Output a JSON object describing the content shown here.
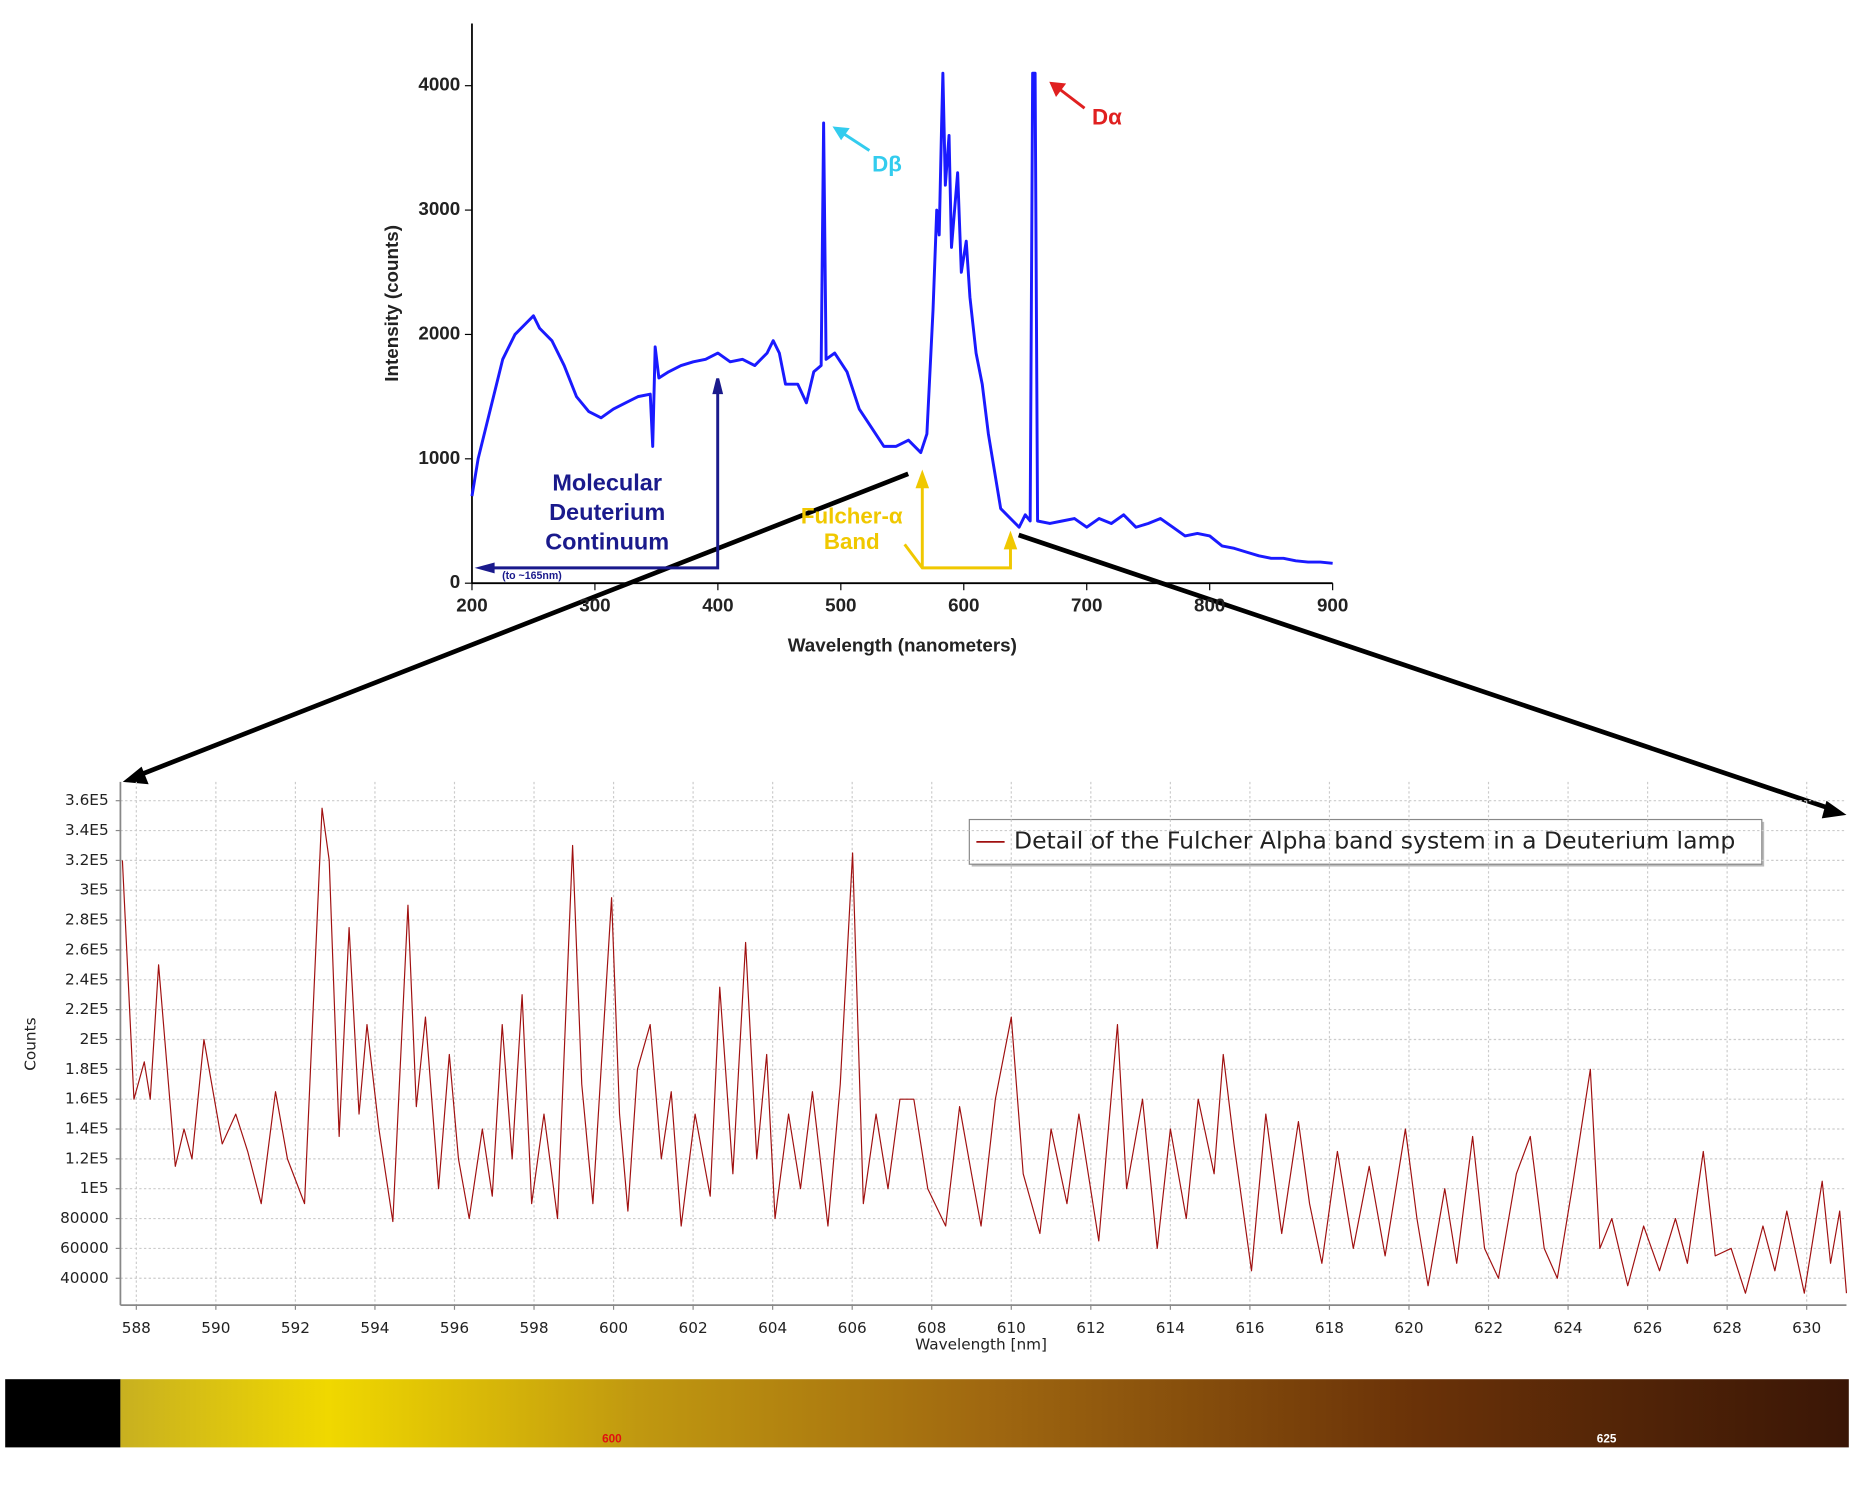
{
  "chart_data": [
    {
      "type": "line",
      "x_label": "Wavelength (nanometers)",
      "y_label": "Intensity (counts)",
      "xlim": [
        200,
        900
      ],
      "ylim": [
        0,
        4500
      ],
      "xticks": [
        200,
        300,
        400,
        500,
        600,
        700,
        800,
        900
      ],
      "yticks": [
        0,
        1000,
        2000,
        3000,
        4000
      ],
      "grid": false,
      "x": [
        200,
        205,
        215,
        225,
        235,
        245,
        250,
        255,
        265,
        275,
        285,
        295,
        305,
        315,
        325,
        335,
        345,
        347,
        349,
        352,
        360,
        370,
        380,
        390,
        400,
        410,
        420,
        430,
        440,
        445,
        450,
        455,
        465,
        472,
        478,
        484,
        486,
        488,
        495,
        505,
        515,
        525,
        535,
        545,
        555,
        565,
        570,
        575,
        578,
        580,
        582,
        583,
        585,
        588,
        590,
        595,
        598,
        602,
        605,
        610,
        615,
        620,
        625,
        630,
        635,
        640,
        645,
        650,
        654,
        656,
        658,
        660,
        670,
        680,
        690,
        700,
        710,
        720,
        730,
        740,
        750,
        760,
        770,
        780,
        790,
        800,
        810,
        820,
        830,
        840,
        850,
        860,
        870,
        880,
        890,
        900
      ],
      "series": [
        {
          "color": "#1a1aff",
          "values": [
            700,
            1000,
            1400,
            1800,
            2000,
            2100,
            2150,
            2050,
            1950,
            1750,
            1500,
            1380,
            1330,
            1400,
            1450,
            1500,
            1520,
            1100,
            1900,
            1650,
            1700,
            1750,
            1780,
            1800,
            1850,
            1780,
            1800,
            1750,
            1850,
            1950,
            1850,
            1600,
            1600,
            1450,
            1700,
            1750,
            3700,
            1800,
            1850,
            1700,
            1400,
            1250,
            1100,
            1100,
            1150,
            1050,
            1200,
            2200,
            3000,
            2800,
            3700,
            4100,
            3200,
            3600,
            2700,
            3300,
            2500,
            2750,
            2300,
            1850,
            1600,
            1200,
            900,
            600,
            550,
            500,
            450,
            550,
            500,
            4100,
            4100,
            500,
            480,
            500,
            520,
            450,
            520,
            480,
            550,
            450,
            480,
            520,
            450,
            380,
            400,
            380,
            300,
            280,
            250,
            220,
            200,
            200,
            180,
            170,
            170,
            160
          ]
        }
      ],
      "annotations": [
        {
          "text": "Dβ",
          "color": "#33ccee"
        },
        {
          "text": "Dα",
          "color": "#e02020"
        },
        {
          "text": "Molecular",
          "color": "#1a1a8c"
        },
        {
          "text": "Deuterium",
          "color": "#1a1a8c"
        },
        {
          "text": "Continuum",
          "color": "#1a1a8c"
        },
        {
          "text": "(to ~165nm)",
          "color": "#1a1a8c"
        },
        {
          "text": "Fulcher-α",
          "color": "#f0c800"
        },
        {
          "text": "Band",
          "color": "#f0c800"
        }
      ]
    },
    {
      "type": "line",
      "x_label": "Wavelength [nm]",
      "y_label": "Counts",
      "xlim": [
        587.6,
        631
      ],
      "ylim": [
        22000,
        372600
      ],
      "xticks": [
        588,
        590,
        592,
        594,
        596,
        598,
        600,
        602,
        604,
        606,
        608,
        610,
        612,
        614,
        616,
        618,
        620,
        622,
        624,
        626,
        628,
        630
      ],
      "yticks": [
        {
          "value": 360000,
          "label": "3.6E5"
        },
        {
          "value": 340000,
          "label": "3.4E5"
        },
        {
          "value": 320000,
          "label": "3.2E5"
        },
        {
          "value": 300000,
          "label": "3E5"
        },
        {
          "value": 280000,
          "label": "2.8E5"
        },
        {
          "value": 260000,
          "label": "2.6E5"
        },
        {
          "value": 240000,
          "label": "2.4E5"
        },
        {
          "value": 220000,
          "label": "2.2E5"
        },
        {
          "value": 200000,
          "label": "2E5"
        },
        {
          "value": 180000,
          "label": "1.8E5"
        },
        {
          "value": 160000,
          "label": "1.6E5"
        },
        {
          "value": 140000,
          "label": "1.4E5"
        },
        {
          "value": 120000,
          "label": "1.2E5"
        },
        {
          "value": 100000,
          "label": "1E5"
        },
        80000,
        60000,
        40000
      ],
      "grid": true,
      "x": [
        587.65,
        587.94,
        588.2,
        588.35,
        588.56,
        588.98,
        589.2,
        589.4,
        589.7,
        590.16,
        590.5,
        590.8,
        591.14,
        591.5,
        591.8,
        592.23,
        592.67,
        592.85,
        593.1,
        593.35,
        593.6,
        593.8,
        594.1,
        594.45,
        594.83,
        595.04,
        595.27,
        595.6,
        595.87,
        596.1,
        596.37,
        596.7,
        596.95,
        597.2,
        597.45,
        597.7,
        597.94,
        598.25,
        598.59,
        598.97,
        599.2,
        599.48,
        599.95,
        600.15,
        600.36,
        600.6,
        600.92,
        601.2,
        601.45,
        601.7,
        602.05,
        602.43,
        602.67,
        603.0,
        603.32,
        603.6,
        603.85,
        604.06,
        604.4,
        604.7,
        605.0,
        605.39,
        605.7,
        606.01,
        606.28,
        606.6,
        606.9,
        607.2,
        607.55,
        607.9,
        608.35,
        608.7,
        609.0,
        609.24,
        609.6,
        610.0,
        610.3,
        610.72,
        611.0,
        611.4,
        611.7,
        612.2,
        612.67,
        612.9,
        613.3,
        613.67,
        614.0,
        614.4,
        614.7,
        615.1,
        615.33,
        615.6,
        616.04,
        616.4,
        616.8,
        617.22,
        617.5,
        617.81,
        618.2,
        618.6,
        619.0,
        619.4,
        619.91,
        620.2,
        620.48,
        620.9,
        621.2,
        621.6,
        621.9,
        622.25,
        622.7,
        623.05,
        623.4,
        623.73,
        624.1,
        624.56,
        624.8,
        625.1,
        625.5,
        625.9,
        626.3,
        626.7,
        627.0,
        627.4,
        627.7,
        628.1,
        628.46,
        628.9,
        629.2,
        629.5,
        629.94,
        630.39,
        630.6,
        630.83,
        631.0
      ],
      "series": [
        {
          "name": "Detail of the Fulcher Alpha band system in a Deuterium lamp",
          "color": "#a01010",
          "values": [
            320000,
            160000,
            185000,
            160000,
            250000,
            115000,
            140000,
            120000,
            200000,
            130000,
            150000,
            125000,
            90000,
            165000,
            120000,
            90000,
            355000,
            320000,
            135000,
            275000,
            150000,
            210000,
            140000,
            78000,
            290000,
            155000,
            215000,
            100000,
            190000,
            120000,
            80000,
            140000,
            95000,
            210000,
            120000,
            230000,
            90000,
            150000,
            80000,
            330000,
            170000,
            90000,
            295000,
            150000,
            85000,
            180000,
            210000,
            120000,
            165000,
            75000,
            150000,
            95000,
            235000,
            110000,
            265000,
            120000,
            190000,
            80000,
            150000,
            100000,
            165000,
            75000,
            170000,
            325000,
            90000,
            150000,
            100000,
            160000,
            160000,
            100000,
            75000,
            155000,
            110000,
            75000,
            160000,
            215000,
            110000,
            70000,
            140000,
            90000,
            150000,
            65000,
            210000,
            100000,
            160000,
            60000,
            140000,
            80000,
            160000,
            110000,
            190000,
            130000,
            45000,
            150000,
            70000,
            145000,
            90000,
            50000,
            125000,
            60000,
            115000,
            55000,
            140000,
            80000,
            35000,
            100000,
            50000,
            135000,
            60000,
            40000,
            110000,
            135000,
            60000,
            40000,
            100000,
            180000,
            60000,
            80000,
            35000,
            75000,
            45000,
            80000,
            50000,
            125000,
            55000,
            60000,
            30000,
            75000,
            45000,
            85000,
            30000,
            105000,
            50000,
            85000,
            30000
          ]
        }
      ]
    }
  ],
  "spectrum_strip": {
    "labels": [
      "600",
      "625"
    ]
  }
}
